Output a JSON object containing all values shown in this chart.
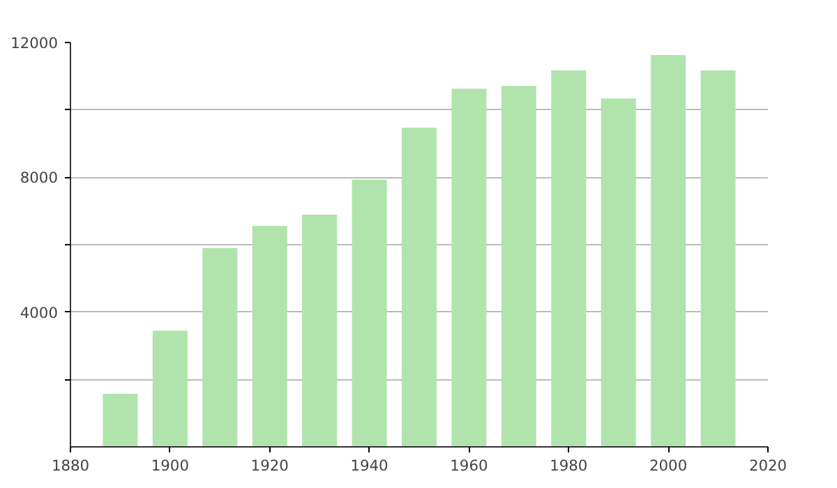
{
  "chart_data": {
    "type": "bar",
    "x": [
      1890,
      1900,
      1910,
      1920,
      1930,
      1940,
      1950,
      1960,
      1970,
      1980,
      1990,
      2000,
      2010
    ],
    "values": [
      1580,
      3450,
      5900,
      6560,
      6890,
      7930,
      9470,
      10630,
      10710,
      11170,
      10340,
      11630,
      11170
    ],
    "color": "#b0e4ac",
    "xlim": [
      1880,
      2020
    ],
    "xticks": [
      1880,
      1900,
      1920,
      1940,
      1960,
      1980,
      2000,
      2020
    ],
    "ylim": [
      0,
      12000
    ],
    "yticks": [
      {
        "value": 2000,
        "label": null
      },
      4000,
      {
        "value": 6000,
        "label": null
      },
      8000,
      {
        "value": 10000,
        "label": null
      },
      12000
    ],
    "grid": "y"
  }
}
